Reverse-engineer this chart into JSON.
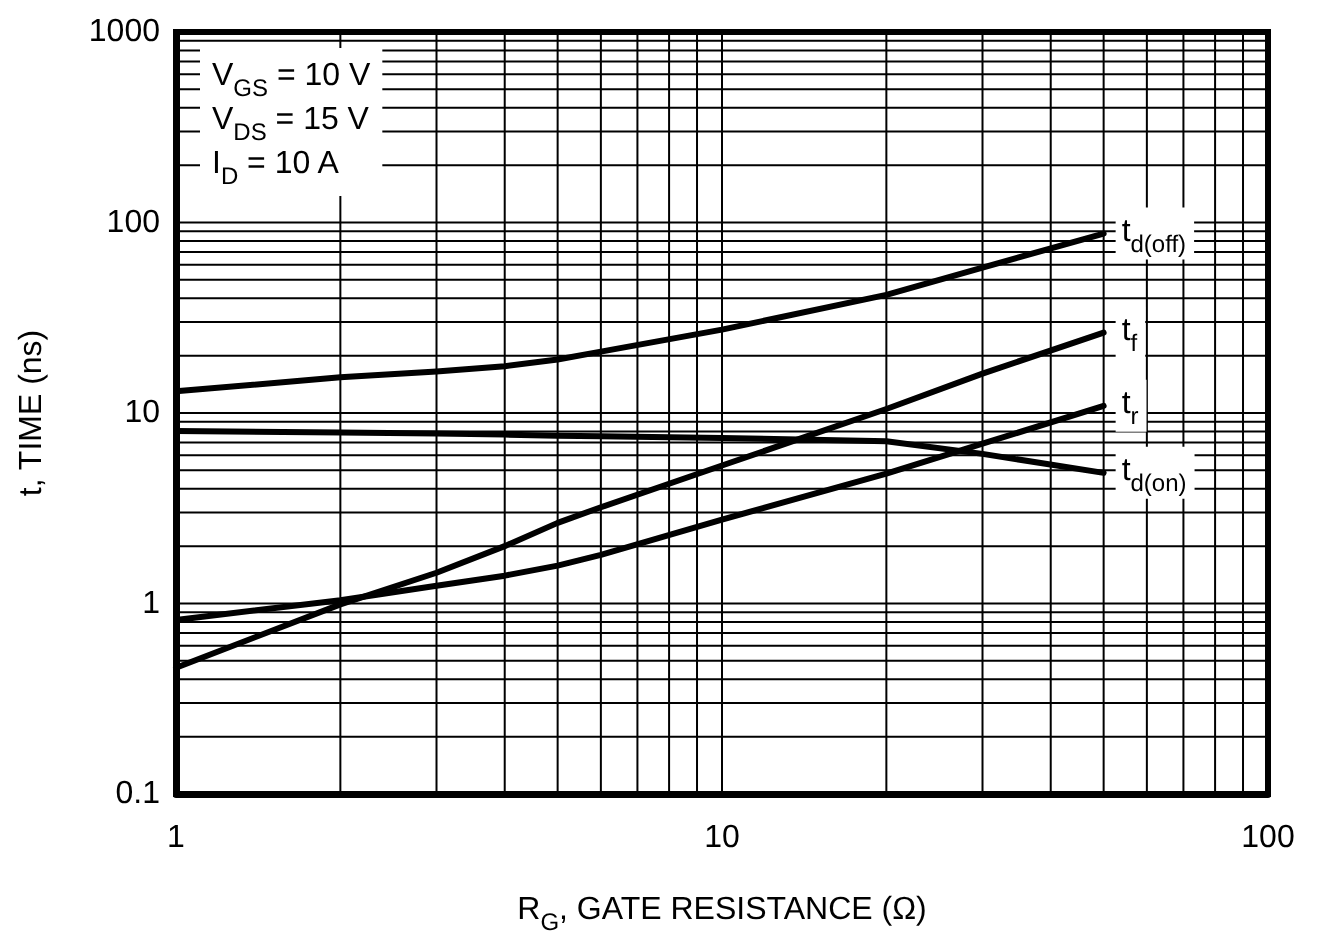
{
  "chart_data": {
    "type": "line",
    "xlabel": "R$_{G}$, GATE RESISTANCE (Ω)",
    "ylabel": "t, TIME (ns)",
    "annotations": [
      "V$_{GS}$ = 10 V",
      "V$_{DS}$ = 15 V",
      "I$_{D}$ = 10 A"
    ],
    "x": [
      1,
      2,
      3,
      4,
      5,
      6,
      10,
      20,
      30,
      50
    ],
    "series": [
      {
        "name": "t$_{d(off)}$",
        "color": "#000000",
        "values": [
          13,
          15.4,
          16.5,
          17.6,
          19.1,
          21,
          27.4,
          41.7,
          58,
          87.5
        ]
      },
      {
        "name": "t$_{f}$",
        "color": "#000000",
        "values": [
          0.46,
          0.99,
          1.45,
          2.0,
          2.65,
          3.2,
          5.3,
          10.5,
          16.1,
          26.4
        ]
      },
      {
        "name": "t$_{r}$",
        "color": "#000000",
        "values": [
          0.82,
          1.04,
          1.24,
          1.4,
          1.58,
          1.8,
          2.76,
          4.8,
          6.9,
          10.9
        ]
      },
      {
        "name": "t$_{d(on)}$",
        "color": "#000000",
        "values": [
          8.05,
          7.9,
          7.8,
          7.7,
          7.6,
          7.55,
          7.4,
          7.1,
          6.1,
          4.85
        ]
      }
    ],
    "log": "xy",
    "xlim": [
      1,
      100
    ],
    "xticks": [
      1,
      10,
      100
    ],
    "ylim": [
      0.1,
      1000
    ],
    "yticks": [
      0.1,
      1,
      10,
      100,
      1000
    ],
    "grid": true,
    "legend": false,
    "marker": "none",
    "line_style": "solid"
  }
}
